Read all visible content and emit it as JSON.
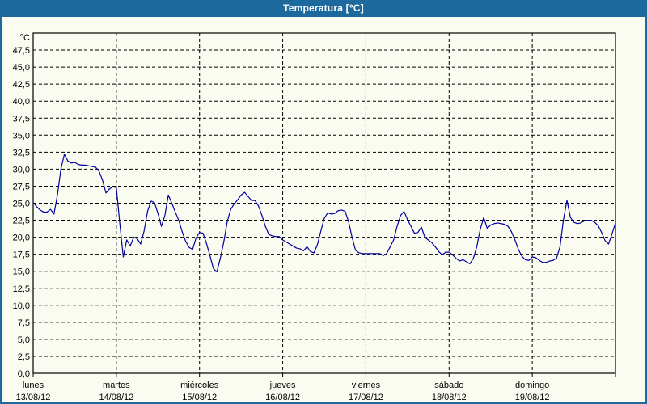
{
  "window": {
    "title": "Temperatura [°C]"
  },
  "colors": {
    "titlebar": "#1c699d",
    "window_border": "#1c699d",
    "content_bg": "#fbfcf1",
    "plot_border": "#000000",
    "gridline": "#000000",
    "line": "#0000a0",
    "label": "#000000",
    "title_text": "#ffffff"
  },
  "chart_data": {
    "type": "line",
    "title": "Temperatura [°C]",
    "y_unit_label": "°C",
    "ylim": [
      0,
      50
    ],
    "ytick_step": 2.5,
    "ytick_labels": [
      "0,0",
      "2,5",
      "5,0",
      "7,5",
      "10,0",
      "12,5",
      "15,0",
      "17,5",
      "20,0",
      "22,5",
      "25,0",
      "27,5",
      "30,0",
      "32,5",
      "35,0",
      "37,5",
      "40,0",
      "42,5",
      "45,0",
      "47,5"
    ],
    "grid": "dashed",
    "legend": "none",
    "days": [
      {
        "name": "lunes",
        "date": "13/08/12"
      },
      {
        "name": "martes",
        "date": "14/08/12"
      },
      {
        "name": "miércoles",
        "date": "15/08/12"
      },
      {
        "name": "jueves",
        "date": "16/08/12"
      },
      {
        "name": "viernes",
        "date": "17/08/12"
      },
      {
        "name": "sábado",
        "date": "18/08/12"
      },
      {
        "name": "domingo",
        "date": "19/08/12"
      }
    ],
    "series": [
      {
        "name": "Temperatura",
        "unit": "°C",
        "samples_per_day": 24,
        "values": [
          25.1,
          24.5,
          24.0,
          23.7,
          23.7,
          24.1,
          23.4,
          26.2,
          30.0,
          32.2,
          31.2,
          30.9,
          31.0,
          30.7,
          30.6,
          30.6,
          30.5,
          30.4,
          30.3,
          29.7,
          28.4,
          26.5,
          27.1,
          27.4,
          27.3,
          22.0,
          17.1,
          19.6,
          18.7,
          20.0,
          19.8,
          19.0,
          20.9,
          23.8,
          25.3,
          25.1,
          23.5,
          21.6,
          23.2,
          26.2,
          25.0,
          23.7,
          22.5,
          20.8,
          19.4,
          18.5,
          18.2,
          19.9,
          20.7,
          20.6,
          19.1,
          17.3,
          15.4,
          14.9,
          16.9,
          19.3,
          22.3,
          24.1,
          24.9,
          25.5,
          26.2,
          26.6,
          26.0,
          25.4,
          25.4,
          24.6,
          23.2,
          21.6,
          20.4,
          20.2,
          20.1,
          20.1,
          19.6,
          19.3,
          19.0,
          18.7,
          18.4,
          18.3,
          18.0,
          18.6,
          17.9,
          17.7,
          18.9,
          20.9,
          22.8,
          23.6,
          23.4,
          23.5,
          23.9,
          24.0,
          23.8,
          22.3,
          20.0,
          18.1,
          17.7,
          17.6,
          17.6,
          17.6,
          17.6,
          17.6,
          17.6,
          17.3,
          17.6,
          18.6,
          19.6,
          21.6,
          23.2,
          23.8,
          22.6,
          21.6,
          20.6,
          20.7,
          21.5,
          20.0,
          19.6,
          19.2,
          18.6,
          17.9,
          17.4,
          17.8,
          17.8,
          17.4,
          16.9,
          16.5,
          16.7,
          16.4,
          16.1,
          16.9,
          18.6,
          21.2,
          22.9,
          21.3,
          21.8,
          22.0,
          22.1,
          22.0,
          21.9,
          21.6,
          20.8,
          19.6,
          18.2,
          17.2,
          16.7,
          16.6,
          17.1,
          17.0,
          16.6,
          16.3,
          16.3,
          16.5,
          16.6,
          16.9,
          18.6,
          22.6,
          25.4,
          22.9,
          22.2,
          22.0,
          22.1,
          22.4,
          22.5,
          22.5,
          22.2,
          21.7,
          20.7,
          19.5,
          19.0,
          20.5,
          22.1
        ]
      }
    ]
  }
}
